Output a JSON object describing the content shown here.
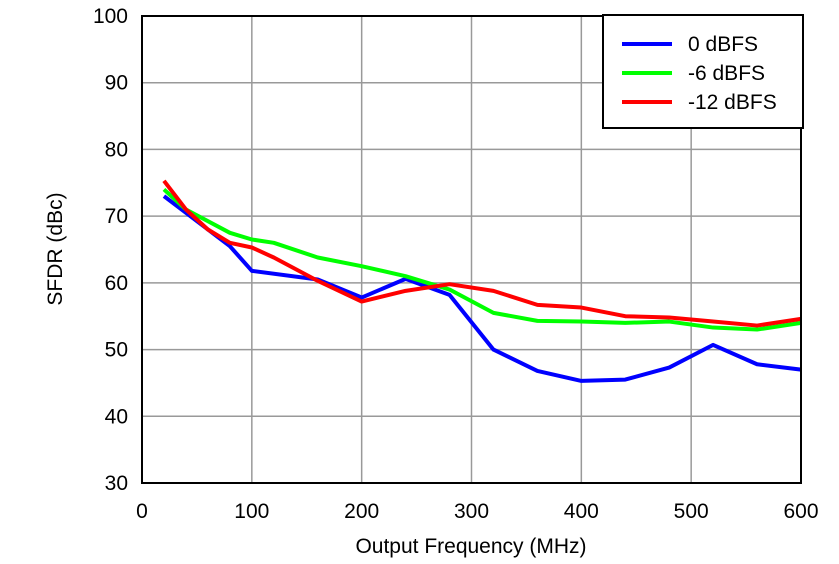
{
  "chart_data": {
    "type": "line",
    "title": "",
    "xlabel": "Output Frequency (MHz)",
    "ylabel": "SFDR (dBc)",
    "xlim": [
      0,
      600
    ],
    "ylim": [
      30,
      100
    ],
    "xticks": [
      0,
      100,
      200,
      300,
      400,
      500,
      600
    ],
    "yticks": [
      30,
      40,
      50,
      60,
      70,
      80,
      90,
      100
    ],
    "grid": true,
    "legend_position": "top-right",
    "series": [
      {
        "name": "0 dBFS",
        "color": "#0000ff",
        "x": [
          20,
          40,
          80,
          100,
          160,
          200,
          240,
          280,
          320,
          360,
          400,
          440,
          480,
          520,
          560,
          600
        ],
        "y": [
          73,
          70.5,
          65.5,
          61.8,
          60.5,
          57.8,
          60.6,
          58.2,
          50,
          46.8,
          45.3,
          45.5,
          47.3,
          50.7,
          47.8,
          47
        ]
      },
      {
        "name": "-6 dBFS",
        "color": "#00ff00",
        "x": [
          20,
          40,
          80,
          100,
          120,
          160,
          200,
          240,
          280,
          320,
          360,
          400,
          440,
          480,
          520,
          560,
          600
        ],
        "y": [
          74,
          71,
          67.5,
          66.5,
          66,
          63.8,
          62.5,
          61,
          59,
          55.5,
          54.3,
          54.2,
          54,
          54.2,
          53.3,
          53,
          54
        ]
      },
      {
        "name": "-12 dBFS",
        "color": "#ff0000",
        "x": [
          20,
          40,
          60,
          80,
          100,
          120,
          160,
          200,
          240,
          280,
          320,
          360,
          400,
          440,
          480,
          520,
          560,
          600
        ],
        "y": [
          75.3,
          71,
          68,
          66,
          65.3,
          63.8,
          60.3,
          57.2,
          58.8,
          59.8,
          58.8,
          56.7,
          56.3,
          55,
          54.8,
          54.2,
          53.6,
          54.6
        ]
      }
    ]
  }
}
